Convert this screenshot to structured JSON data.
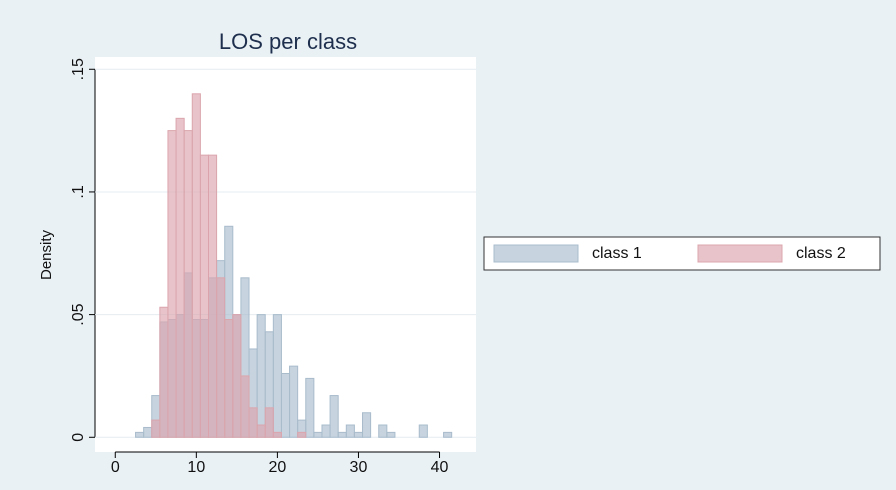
{
  "chart_data": {
    "type": "histogram",
    "title": "LOS per class",
    "ylabel": "Density",
    "bins": [
      2.5,
      3.5,
      4.5,
      5.5,
      6.5,
      7.5,
      8.5,
      9.5,
      10.5,
      11.5,
      12.5,
      13.5,
      14.5,
      15.5,
      16.5,
      17.5,
      18.5,
      19.5,
      20.5,
      21.5,
      22.5,
      23.5,
      24.5,
      25.5,
      26.5,
      27.5,
      28.5,
      29.5,
      30.5,
      31.5,
      32.5,
      33.5,
      34.5,
      35.5,
      36.5,
      37.5,
      38.5,
      39.5,
      40.5,
      41.5
    ],
    "series": [
      {
        "name": "class 1",
        "color": "#a9bccc",
        "values": [
          0.002,
          0.004,
          0.017,
          0.047,
          0.048,
          0.05,
          0.067,
          0.048,
          0.048,
          0.065,
          0.072,
          0.086,
          0.05,
          0.065,
          0.036,
          0.05,
          0.043,
          0.05,
          0.026,
          0.029,
          0.007,
          0.024,
          0.002,
          0.005,
          0.017,
          0.002,
          0.005,
          0.002,
          0.01,
          0,
          0.005,
          0.002,
          0,
          0,
          0,
          0.005,
          0,
          0,
          0.002
        ]
      },
      {
        "name": "class 2",
        "color": "#dba5ad",
        "values": [
          0,
          0,
          0.007,
          0.053,
          0.125,
          0.13,
          0.125,
          0.14,
          0.115,
          0.115,
          0.065,
          0.048,
          0.05,
          0.025,
          0.012,
          0.005,
          0.012,
          0.002,
          0,
          0,
          0.002,
          0,
          0,
          0,
          0,
          0,
          0,
          0,
          0,
          0,
          0,
          0,
          0,
          0,
          0,
          0,
          0,
          0,
          0
        ]
      }
    ],
    "xlim": [
      -2.5,
      44.5
    ],
    "xticks": [
      0,
      10,
      20,
      30,
      40
    ],
    "ylim": [
      -0.006,
      0.155
    ],
    "yticks": [
      0,
      {
        "value": 0.05,
        "label": ".05"
      },
      {
        "value": 0.1,
        "label": ".1"
      },
      {
        "value": 0.15,
        "label": ".15"
      }
    ],
    "grid": true,
    "legend": "right"
  }
}
